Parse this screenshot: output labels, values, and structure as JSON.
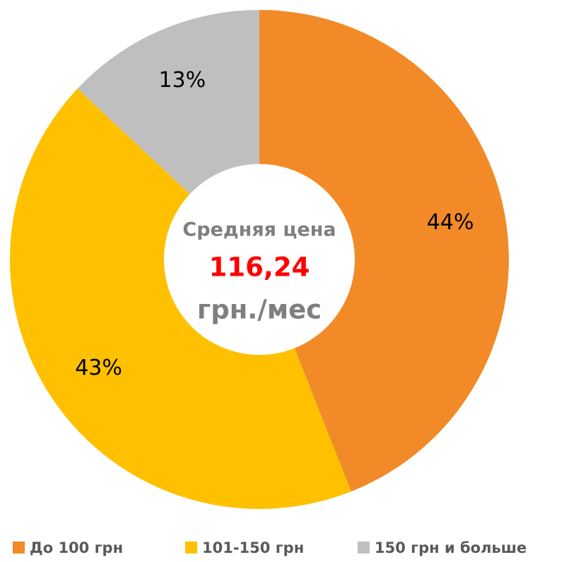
{
  "chart_data": {
    "type": "pie",
    "categories": [
      "До 100 грн",
      "101-150 грн",
      "150 грн и больше"
    ],
    "values": [
      44,
      43,
      13
    ],
    "value_labels": [
      "44%",
      "43%",
      "13%"
    ],
    "colors": [
      "#F28A27",
      "#FFC000",
      "#BFBFBF"
    ],
    "annotations": [
      "Средняя цена",
      "116,24",
      "грн./мес"
    ],
    "legend": "bottom"
  }
}
